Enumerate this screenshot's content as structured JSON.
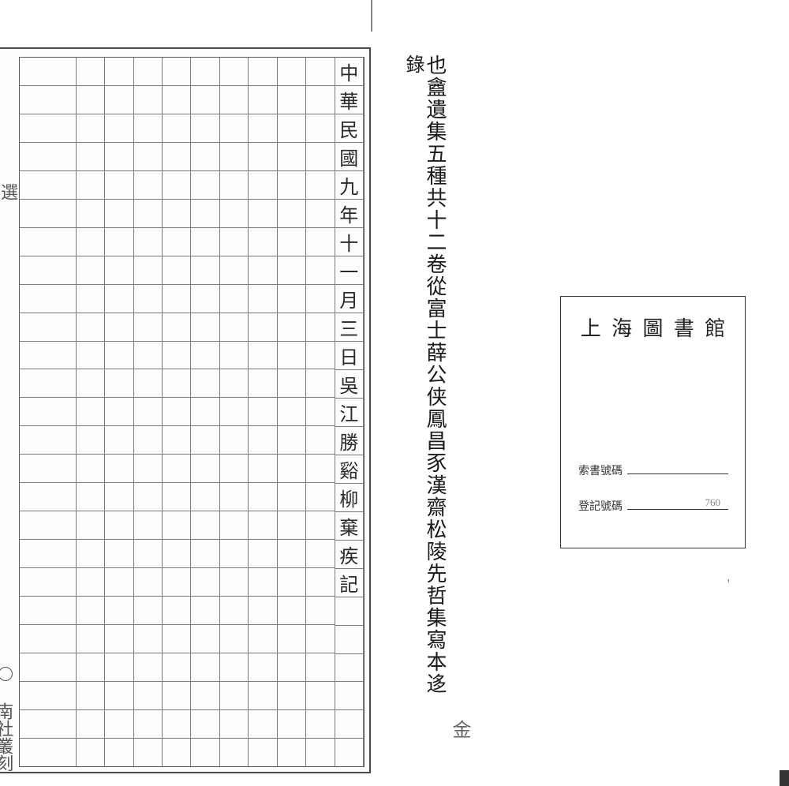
{
  "manuscript": {
    "columns_count": 12,
    "rows_count": 25,
    "margin_top_char": "選",
    "margin_bottom_text": "南社叢刻",
    "filled_column_text": "中華民國九年十一月三日吳江勝谿柳棄疾記"
  },
  "right_text": {
    "col1": "也盦遺集五種共十二卷從富士薛公侠鳳昌豕漢齋松陵先哲集寫本迻",
    "col2": "錄",
    "col3": ""
  },
  "bottom_right_mark": "金",
  "library_card": {
    "title_chars": [
      "上",
      "海",
      "圖",
      "書",
      "館"
    ],
    "row1_label": "索書號碼",
    "row1_value": "",
    "row2_label": "登記號碼",
    "row2_value": "760"
  },
  "colors": {
    "ink": "#2a2a2a",
    "grid": "#5a5a5a",
    "paper": "#ffffff"
  }
}
